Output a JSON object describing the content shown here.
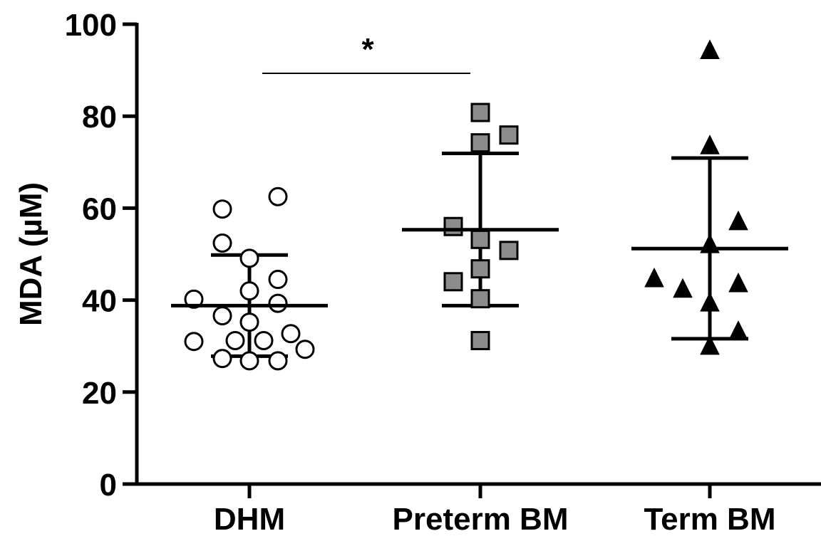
{
  "chart_data": {
    "type": "scatter",
    "ylabel": "MDA (µM)",
    "ylim": [
      0,
      100
    ],
    "yticks": [
      0,
      20,
      40,
      60,
      80,
      100
    ],
    "categories": [
      "DHM",
      "Preterm BM",
      "Term BM"
    ],
    "series": [
      {
        "category": "DHM",
        "marker": "open-circle",
        "fill": "#ffffff",
        "values": [
          62.5,
          59.8,
          52.4,
          49.1,
          44.5,
          42.0,
          40.2,
          39.3,
          36.6,
          35.2,
          32.7,
          31.0,
          31.2,
          31.2,
          29.3,
          27.3,
          26.8,
          26.8
        ],
        "mean": 38.8,
        "sd_upper": 49.8,
        "sd_lower": 27.8
      },
      {
        "category": "Preterm BM",
        "marker": "filled-square",
        "fill": "#8c8c8c",
        "values": [
          80.8,
          75.9,
          74.2,
          56.0,
          53.2,
          50.8,
          46.8,
          44.0,
          40.3,
          31.2
        ],
        "mean": 55.3,
        "sd_upper": 71.9,
        "sd_lower": 38.8
      },
      {
        "category": "Term BM",
        "marker": "filled-triangle",
        "fill": "#000000",
        "values": [
          94.5,
          73.8,
          57.3,
          52.3,
          44.9,
          43.8,
          42.6,
          39.6,
          33.4,
          30.2
        ],
        "mean": 51.2,
        "sd_upper": 70.9,
        "sd_lower": 31.6
      }
    ],
    "significance": [
      {
        "from": "DHM",
        "to": "Preterm BM",
        "label": "*"
      }
    ]
  }
}
